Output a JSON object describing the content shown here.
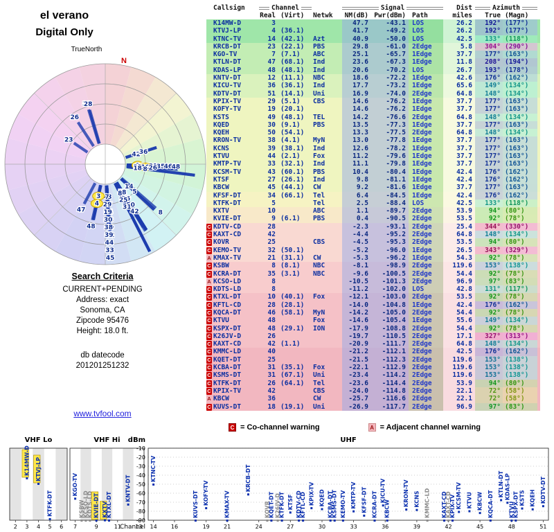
{
  "radar": {
    "title": "el verano",
    "subtitle": "Digital Only",
    "north_label": "TrueNorth",
    "n_label": "N"
  },
  "search_criteria": {
    "heading": "Search Criteria",
    "lines": [
      "CURRENT+PENDING",
      "Address: exact",
      "Sonoma, CA",
      "Zipcode 95476",
      "Height: 18.0 ft."
    ],
    "datecode_label": "db datecode",
    "datecode": "201201251232",
    "link": "www.tvfool.com"
  },
  "legend": {
    "co": {
      "symbol": "C",
      "label": "= Co-channel warning"
    },
    "adj": {
      "symbol": "A",
      "label": "= Adjacent channel warning"
    }
  },
  "table": {
    "headers": {
      "callsign": "Callsign",
      "channel": "Channel",
      "signal": "Signal",
      "dist": "Dist",
      "azimuth": "Azimuth",
      "real": "Real",
      "virt": "(Virt)",
      "netwk": "Netwk",
      "nm": "NM(dB)",
      "pwr": "Pwr(dBm)",
      "path": "Path",
      "miles": "miles",
      "true": "True",
      "magn": "(Magn)"
    },
    "columns": [
      "warning",
      "callsign",
      "real_ch",
      "virt_ch",
      "network",
      "nm_db",
      "pwr_dbm",
      "path",
      "dist_mi",
      "az_true",
      "az_magn"
    ],
    "rows": [
      [
        "",
        "K14MW-D",
        3,
        "",
        "",
        47.7,
        -43.1,
        "LOS",
        26.2,
        192,
        177
      ],
      [
        "",
        "KTVJ-LP",
        4,
        "(36.1)",
        "",
        41.7,
        -49.2,
        "LOS",
        26.2,
        192,
        177
      ],
      [
        "",
        "KTNC-TV",
        14,
        "(42.1)",
        "Azt",
        40.9,
        -50.0,
        "LOS",
        42.5,
        133,
        118
      ],
      [
        "",
        "KRCB-DT",
        23,
        "(22.1)",
        "PBS",
        29.8,
        -61.0,
        "2Edge",
        5.8,
        304,
        290
      ],
      [
        "",
        "KGO-TV",
        7,
        "(7.1)",
        "ABC",
        25.1,
        -65.7,
        "1Edge",
        37.7,
        177,
        163
      ],
      [
        "",
        "KTLN-DT",
        47,
        "(68.1)",
        "Ind",
        23.6,
        -67.3,
        "1Edge",
        11.8,
        208,
        194
      ],
      [
        "",
        "KDAS-LP",
        48,
        "(48.1)",
        "Ind",
        20.6,
        -70.2,
        "LOS",
        26.7,
        193,
        178
      ],
      [
        "",
        "KNTV-DT",
        12,
        "(11.1)",
        "NBC",
        18.6,
        -72.2,
        "1Edge",
        42.6,
        176,
        162
      ],
      [
        "",
        "KICU-TV",
        36,
        "(36.1)",
        "Ind",
        17.7,
        -73.2,
        "1Edge",
        65.6,
        149,
        134
      ],
      [
        "",
        "KDTV-DT",
        51,
        "(14.1)",
        "Uni",
        16.9,
        -74.0,
        "2Edge",
        64.8,
        148,
        134
      ],
      [
        "",
        "KPIX-TV",
        29,
        "(5.1)",
        "CBS",
        14.6,
        -76.2,
        "1Edge",
        37.7,
        177,
        163
      ],
      [
        "",
        "KOFY-TV",
        19,
        "(20.1)",
        "",
        14.6,
        -76.2,
        "1Edge",
        37.7,
        177,
        163
      ],
      [
        "",
        "KSTS",
        49,
        "(48.1)",
        "TEL",
        14.2,
        -76.6,
        "2Edge",
        64.8,
        148,
        134
      ],
      [
        "",
        "KQED",
        30,
        "(9.1)",
        "PBS",
        13.5,
        -77.3,
        "1Edge",
        37.7,
        177,
        163
      ],
      [
        "",
        "KQEH",
        50,
        "(54.1)",
        "",
        13.3,
        -77.5,
        "2Edge",
        64.8,
        148,
        134
      ],
      [
        "",
        "KRON-TV",
        38,
        "(4.1)",
        "MyN",
        13.0,
        -77.8,
        "1Edge",
        37.7,
        177,
        163
      ],
      [
        "",
        "KCNS",
        39,
        "(38.1)",
        "Ind",
        12.6,
        -78.2,
        "1Edge",
        37.7,
        177,
        163
      ],
      [
        "",
        "KTVU",
        44,
        "(2.1)",
        "Fox",
        11.2,
        -79.6,
        "1Edge",
        37.7,
        177,
        163
      ],
      [
        "",
        "KMTP-TV",
        33,
        "(32.1)",
        "Ind",
        11.1,
        -79.8,
        "1Edge",
        37.7,
        177,
        163
      ],
      [
        "",
        "KCSM-TV",
        43,
        "(60.1)",
        "PBS",
        10.4,
        -80.4,
        "1Edge",
        42.4,
        176,
        162
      ],
      [
        "",
        "KTSF",
        27,
        "(26.1)",
        "Ind",
        9.8,
        -81.1,
        "1Edge",
        42.4,
        176,
        162
      ],
      [
        "",
        "KBCW",
        45,
        "(44.1)",
        "CW",
        9.2,
        -81.6,
        "1Edge",
        37.7,
        177,
        163
      ],
      [
        "",
        "KFSF-DT",
        34,
        "(66.1)",
        "Tel",
        6.4,
        -84.5,
        "1Edge",
        42.4,
        176,
        162
      ],
      [
        "",
        "KTFK-DT",
        5,
        "",
        "Tel",
        2.5,
        -88.4,
        "LOS",
        42.5,
        133,
        118
      ],
      [
        "",
        "KXTV",
        10,
        "",
        "ABC",
        1.1,
        -89.7,
        "2Edge",
        53.9,
        94,
        80
      ],
      [
        "",
        "KVIE-DT",
        9,
        "(6.1)",
        "PBS",
        0.4,
        -90.5,
        "2Edge",
        53.5,
        92,
        78
      ],
      [
        "C",
        "KDTV-CD",
        28,
        "",
        "",
        -2.3,
        -93.1,
        "2Edge",
        25.4,
        344,
        330
      ],
      [
        "C",
        "KAXT-CD",
        42,
        "",
        "",
        -4.4,
        -95.2,
        "2Edge",
        64.8,
        148,
        134
      ],
      [
        "C",
        "KOVR",
        25,
        "",
        "CBS",
        -4.5,
        -95.3,
        "2Edge",
        53.5,
        94,
        80
      ],
      [
        "C",
        "KEMO-TV",
        32,
        "(50.1)",
        "",
        -5.2,
        -96.0,
        "1Edge",
        26.5,
        343,
        329
      ],
      [
        "A",
        "KMAX-TV",
        21,
        "(31.1)",
        "CW",
        -5.3,
        -96.2,
        "1Edge",
        54.3,
        92,
        78
      ],
      [
        "C",
        "KSBW",
        8,
        "(8.1)",
        "NBC",
        -8.1,
        -98.9,
        "2Edge",
        119.6,
        153,
        138
      ],
      [
        "C",
        "KCRA-DT",
        35,
        "(3.1)",
        "NBC",
        -9.6,
        -100.5,
        "2Edge",
        54.4,
        92,
        78
      ],
      [
        "A",
        "KCSO-LD",
        8,
        "",
        "",
        -10.5,
        -101.3,
        "2Edge",
        96.9,
        97,
        83
      ],
      [
        "C",
        "KDTS-LD",
        8,
        "",
        "",
        -11.2,
        -102.0,
        "LOS",
        42.8,
        131,
        117
      ],
      [
        "C",
        "KTXL-DT",
        10,
        "(40.1)",
        "Fox",
        -12.1,
        -103.0,
        "2Edge",
        53.5,
        92,
        78
      ],
      [
        "C",
        "KFTL-CD",
        28,
        "(28.1)",
        "",
        -14.0,
        -104.8,
        "1Edge",
        42.4,
        176,
        162
      ],
      [
        "C",
        "KQCA-DT",
        46,
        "(58.1)",
        "MyN",
        -14.2,
        -105.0,
        "2Edge",
        54.4,
        92,
        78
      ],
      [
        "C",
        "KTVU",
        48,
        "",
        "Fox",
        -14.6,
        -105.4,
        "1Edge",
        55.6,
        149,
        134
      ],
      [
        "C",
        "KSPX-DT",
        48,
        "(29.1)",
        "ION",
        -17.9,
        -108.8,
        "2Edge",
        54.4,
        92,
        78
      ],
      [
        "C",
        "K26JV-D",
        26,
        "",
        "",
        -19.7,
        -110.5,
        "2Edge",
        17.1,
        327,
        313
      ],
      [
        "C",
        "KAXT-CD",
        42,
        "(1.1)",
        "",
        -20.9,
        -111.7,
        "2Edge",
        64.8,
        148,
        134
      ],
      [
        "C",
        "KMMC-LD",
        40,
        "",
        "",
        -21.2,
        -112.1,
        "2Edge",
        42.5,
        176,
        162
      ],
      [
        "C",
        "KQET-DT",
        25,
        "",
        "",
        -21.5,
        -112.3,
        "2Edge",
        119.6,
        153,
        138
      ],
      [
        "C",
        "KCBA-DT",
        31,
        "(35.1)",
        "Fox",
        -22.1,
        -112.9,
        "2Edge",
        119.6,
        153,
        138
      ],
      [
        "C",
        "KSMS-DT",
        31,
        "(67.1)",
        "Uni",
        -23.4,
        -114.2,
        "2Edge",
        119.6,
        153,
        138
      ],
      [
        "C",
        "KTFK-DT",
        26,
        "(64.1)",
        "Tel",
        -23.6,
        -114.4,
        "2Edge",
        53.9,
        94,
        80
      ],
      [
        "C",
        "KPIX-TV",
        42,
        "",
        "CBS",
        -24.0,
        -114.8,
        "2Edge",
        22.1,
        72,
        58
      ],
      [
        "A",
        "KBCW",
        36,
        "",
        "CW",
        -25.7,
        -116.6,
        "2Edge",
        22.1,
        72,
        58
      ],
      [
        "C",
        "KUVS-DT",
        18,
        "(19.1)",
        "Uni",
        -26.9,
        -117.7,
        "2Edge",
        96.9,
        97,
        83
      ]
    ]
  },
  "chart_data": [
    {
      "type": "radar",
      "title": "el verano",
      "subtitle": "Digital Only",
      "north_label": "TrueNorth",
      "rings": 5,
      "markers": [
        {
          "ch": 3,
          "az": 192,
          "mi": 26.2,
          "hl": true
        },
        {
          "ch": 4,
          "az": 192,
          "mi": 26.2,
          "hl": true
        },
        {
          "ch": 14,
          "az": 133,
          "mi": 42.5
        },
        {
          "ch": 5,
          "az": 133,
          "mi": 42.5
        },
        {
          "ch": 23,
          "az": 304,
          "mi": 5.8
        },
        {
          "ch": 47,
          "az": 208,
          "mi": 11.8
        },
        {
          "ch": 48,
          "az": 193,
          "mi": 26.7
        },
        {
          "ch": 7,
          "az": 177,
          "mi": 37.7
        },
        {
          "ch": 29,
          "az": 177,
          "mi": 37.7
        },
        {
          "ch": 19,
          "az": 177,
          "mi": 37.7
        },
        {
          "ch": 30,
          "az": 177,
          "mi": 37.7
        },
        {
          "ch": 38,
          "az": 177,
          "mi": 37.7
        },
        {
          "ch": 39,
          "az": 177,
          "mi": 37.7
        },
        {
          "ch": 44,
          "az": 177,
          "mi": 37.7
        },
        {
          "ch": 33,
          "az": 177,
          "mi": 37.7
        },
        {
          "ch": 45,
          "az": 177,
          "mi": 37.7
        },
        {
          "ch": 12,
          "az": 176,
          "mi": 42.6
        },
        {
          "ch": 43,
          "az": 176,
          "mi": 42.4
        },
        {
          "ch": 27,
          "az": 176,
          "mi": 42.4
        },
        {
          "ch": 34,
          "az": 176,
          "mi": 42.4
        },
        {
          "ch": 28,
          "az": 176,
          "mi": 42.4
        },
        {
          "ch": 40,
          "az": 176,
          "mi": 42.5
        },
        {
          "ch": 36,
          "az": 149,
          "mi": 65.6
        },
        {
          "ch": 48,
          "az": 149,
          "mi": 55.6
        },
        {
          "ch": 51,
          "az": 148,
          "mi": 64.8
        },
        {
          "ch": 49,
          "az": 148,
          "mi": 64.8
        },
        {
          "ch": 50,
          "az": 148,
          "mi": 64.8
        },
        {
          "ch": 42,
          "az": 148,
          "mi": 64.8
        },
        {
          "ch": 8,
          "az": 153,
          "mi": 119.6
        },
        {
          "ch": 25,
          "az": 153,
          "mi": 119.6
        },
        {
          "ch": 31,
          "az": 153,
          "mi": 119.6
        },
        {
          "ch": 10,
          "az": 94,
          "mi": 53.9,
          "hl": true
        },
        {
          "ch": 25,
          "az": 94,
          "mi": 53.5
        },
        {
          "ch": 26,
          "az": 94,
          "mi": 53.9
        },
        {
          "ch": 9,
          "az": 92,
          "mi": 53.5,
          "hl": true
        },
        {
          "ch": 21,
          "az": 92,
          "mi": 54.3
        },
        {
          "ch": 35,
          "az": 92,
          "mi": 54.4
        },
        {
          "ch": 46,
          "az": 92,
          "mi": 54.4
        },
        {
          "ch": 10,
          "az": 92,
          "mi": 53.5
        },
        {
          "ch": 48,
          "az": 92,
          "mi": 54.4
        },
        {
          "ch": 18,
          "az": 97,
          "mi": 96.9
        },
        {
          "ch": 8,
          "az": 97,
          "mi": 96.9
        },
        {
          "ch": 8,
          "az": 131,
          "mi": 42.8
        },
        {
          "ch": 28,
          "az": 344,
          "mi": 25.4
        },
        {
          "ch": 32,
          "az": 343,
          "mi": 26.5
        },
        {
          "ch": 26,
          "az": 327,
          "mi": 17.1
        },
        {
          "ch": 42,
          "az": 72,
          "mi": 22.1
        },
        {
          "ch": 36,
          "az": 72,
          "mi": 22.1
        }
      ]
    },
    {
      "type": "signal-vs-channel",
      "ylabel": "dBm",
      "xlabel": "Channel",
      "ylim": [
        -90,
        -10
      ],
      "yticks": [
        -10,
        -20,
        -30,
        -40,
        -50,
        -60,
        -70,
        -80,
        -90
      ],
      "bands": [
        "VHF Lo",
        "VHF Hi",
        "UHF"
      ],
      "x_ticks": {
        "vhf_lo": [
          2,
          3,
          4,
          5,
          6
        ],
        "vhf_hi": [
          7,
          9,
          11,
          13
        ],
        "uhf": [
          14,
          16,
          19,
          21,
          24,
          27,
          30,
          33,
          36,
          39,
          42,
          45,
          48,
          51
        ]
      },
      "stations": [
        {
          "cs": "K14MW-D",
          "ch": 3,
          "dbm": -43.1,
          "hl": true
        },
        {
          "cs": "KTVJ-LP",
          "ch": 4,
          "dbm": -49.2,
          "hl": true
        },
        {
          "cs": "KTNC-TV",
          "ch": 14,
          "dbm": -50.0
        },
        {
          "cs": "KRCB-DT",
          "ch": 23,
          "dbm": -61.0
        },
        {
          "cs": "KGO-TV",
          "ch": 7,
          "dbm": -65.7
        },
        {
          "cs": "KTLN-DT",
          "ch": 47,
          "dbm": -67.3
        },
        {
          "cs": "KDAS-LP",
          "ch": 48,
          "dbm": -70.2
        },
        {
          "cs": "KNTV-DT",
          "ch": 12,
          "dbm": -72.2
        },
        {
          "cs": "KICU-TV",
          "ch": 36,
          "dbm": -73.2
        },
        {
          "cs": "KDTV-DT",
          "ch": 51,
          "dbm": -74.0
        },
        {
          "cs": "KPIX-TV",
          "ch": 29,
          "dbm": -76.2
        },
        {
          "cs": "KOFY-TV",
          "ch": 19,
          "dbm": -76.2
        },
        {
          "cs": "KSTS",
          "ch": 49,
          "dbm": -76.6
        },
        {
          "cs": "KQED",
          "ch": 30,
          "dbm": -77.3
        },
        {
          "cs": "KQEH",
          "ch": 50,
          "dbm": -77.5
        },
        {
          "cs": "KRON-TV",
          "ch": 38,
          "dbm": -77.8
        },
        {
          "cs": "KCNS",
          "ch": 39,
          "dbm": -78.2
        },
        {
          "cs": "KTVU",
          "ch": 44,
          "dbm": -79.6
        },
        {
          "cs": "KMTP-TV",
          "ch": 33,
          "dbm": -79.8
        },
        {
          "cs": "KCSM-TV",
          "ch": 43,
          "dbm": -80.4
        },
        {
          "cs": "KTSF",
          "ch": 27,
          "dbm": -81.1
        },
        {
          "cs": "KBCW",
          "ch": 45,
          "dbm": -81.6
        },
        {
          "cs": "KFSF-DT",
          "ch": 34,
          "dbm": -84.5
        },
        {
          "cs": "KTFK-DT",
          "ch": 5,
          "dbm": -88.4
        },
        {
          "cs": "KXTV",
          "ch": 10,
          "dbm": -89.7,
          "hl": true
        },
        {
          "cs": "KVIE-DT",
          "ch": 9,
          "dbm": -90.5,
          "hl": true
        },
        {
          "cs": "KDTV-CD",
          "ch": 28,
          "dbm": -93.1
        },
        {
          "cs": "KAXT-CD",
          "ch": 42,
          "dbm": -95.2
        },
        {
          "cs": "KOVR",
          "ch": 25,
          "dbm": -95.3,
          "dim": true
        },
        {
          "cs": "KEMO-TV",
          "ch": 32,
          "dbm": -96.0
        },
        {
          "cs": "KMAX-TV",
          "ch": 21,
          "dbm": -96.2
        },
        {
          "cs": "KSBW",
          "ch": 8,
          "dbm": -98.9,
          "dim": true
        },
        {
          "cs": "KCRA-DT",
          "ch": 35,
          "dbm": -100.5
        },
        {
          "cs": "KCSO-LD",
          "ch": 8,
          "dbm": -101.3,
          "dim": true
        },
        {
          "cs": "KDTS-LD",
          "ch": 8,
          "dbm": -102.0,
          "dim": true
        },
        {
          "cs": "KTXL-DT",
          "ch": 10,
          "dbm": -103.0
        },
        {
          "cs": "KFTL-CD",
          "ch": 28,
          "dbm": -104.8
        },
        {
          "cs": "KQCA-DT",
          "ch": 46,
          "dbm": -105.0
        },
        {
          "cs": "KTVU",
          "ch": 48,
          "dbm": -105.4
        },
        {
          "cs": "KSPX-DT",
          "ch": 48,
          "dbm": -108.8
        },
        {
          "cs": "K26JV-D",
          "ch": 26,
          "dbm": -110.5,
          "dim": true
        },
        {
          "cs": "KAXT-CD",
          "ch": 42,
          "dbm": -111.7,
          "dim": true
        },
        {
          "cs": "KMMC-LD",
          "ch": 40,
          "dbm": -112.1,
          "dim": true
        },
        {
          "cs": "KQET-DT",
          "ch": 25,
          "dbm": -112.3
        },
        {
          "cs": "KCBA-DT",
          "ch": 31,
          "dbm": -112.9
        },
        {
          "cs": "KSMS-DT",
          "ch": 31,
          "dbm": -114.2
        },
        {
          "cs": "KTFK-DT",
          "ch": 26,
          "dbm": -114.4
        },
        {
          "cs": "KPIX-TV",
          "ch": 42,
          "dbm": -114.8
        },
        {
          "cs": "KBCW",
          "ch": 36,
          "dbm": -116.6
        },
        {
          "cs": "KUVS-DT",
          "ch": 18,
          "dbm": -117.7
        }
      ]
    }
  ]
}
